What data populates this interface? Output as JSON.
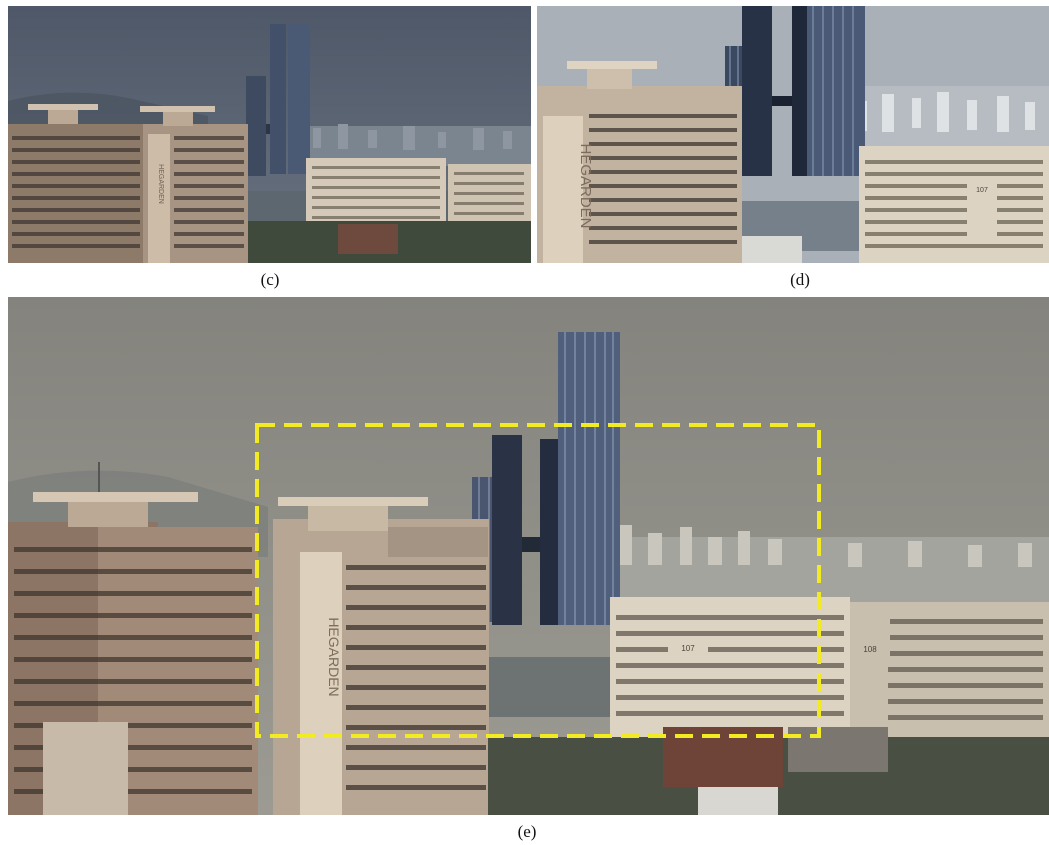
{
  "panels": [
    {
      "id": "c",
      "caption": "(c)",
      "building_sign": "HEGARDEN",
      "building_numbers": []
    },
    {
      "id": "d",
      "caption": "(d)",
      "building_sign": "HEGARDEN",
      "building_numbers": [
        "107"
      ]
    },
    {
      "id": "e",
      "caption": "(e)",
      "building_sign": "HEGARDEN",
      "building_numbers": [
        "107",
        "108"
      ]
    }
  ],
  "annotation": {
    "kind": "dashed-rectangle",
    "color": "#f2ea22"
  },
  "colors": {
    "sky_c": "#5a6473",
    "sky_d": "#a7aeb6",
    "sky_e": "#8c8a82",
    "tower": "#3f4e66",
    "apartment": "#d8cdbd"
  }
}
